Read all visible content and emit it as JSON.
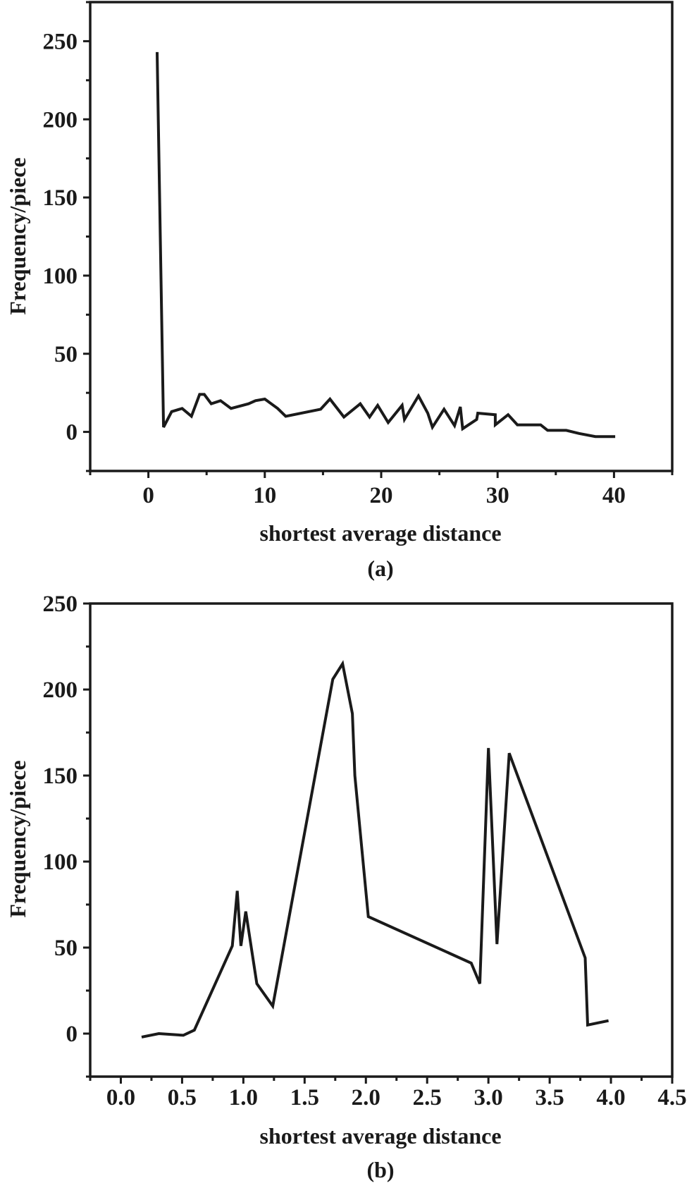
{
  "line_color": "#1a1a1a",
  "chart_data": [
    {
      "type": "line",
      "panel_label": "(a)",
      "xlabel": "shortest average distance",
      "ylabel": "Frequency/piece",
      "xlim": [
        -5,
        45
      ],
      "ylim": [
        -25,
        275
      ],
      "xticks": [
        0,
        10,
        20,
        30,
        40
      ],
      "xtick_labels": [
        "0",
        "10",
        "20",
        "30",
        "40"
      ],
      "xminor_step": 5,
      "yticks": [
        0,
        50,
        100,
        150,
        200,
        250
      ],
      "ytick_labels": [
        "0",
        "50",
        "100",
        "150",
        "200",
        "250"
      ],
      "yminor_step": 25,
      "grid": false,
      "x": [
        0.75,
        1.3,
        2.0,
        2.9,
        3.7,
        4.4,
        4.8,
        5.4,
        6.2,
        7.1,
        8.6,
        9.2,
        10.0,
        11.1,
        11.8,
        14.8,
        15.6,
        16.8,
        18.2,
        19.0,
        19.7,
        20.6,
        21.8,
        22.0,
        23.2,
        24.0,
        24.4,
        25.4,
        26.3,
        26.8,
        27.0,
        28.2,
        28.3,
        29.8,
        29.8,
        30.9,
        31.7,
        33.7,
        34.3,
        35.9,
        37.0,
        38.4,
        40.1
      ],
      "y": [
        243,
        3,
        13,
        15,
        10,
        24,
        24,
        18,
        20,
        15,
        18,
        20,
        21,
        15,
        10,
        14.5,
        21,
        9.5,
        18,
        9.5,
        17,
        6,
        17,
        8,
        23,
        12,
        3,
        14.5,
        4,
        16,
        2,
        8,
        12,
        11,
        4.5,
        11,
        4.5,
        4.5,
        1,
        1,
        -1,
        -3,
        -3
      ]
    },
    {
      "type": "line",
      "panel_label": "(b)",
      "xlabel": "shortest average distance",
      "ylabel": "Frequency/piece",
      "xlim": [
        -0.25,
        4.5
      ],
      "ylim": [
        -25,
        250
      ],
      "xticks": [
        0,
        0.5,
        1.0,
        1.5,
        2.0,
        2.5,
        3.0,
        3.5,
        4.0,
        4.5
      ],
      "xtick_labels": [
        "0.0",
        "0.5",
        "1.0",
        "1.5",
        "2.0",
        "2.5",
        "3.0",
        "3.5",
        "4.0",
        "4.5"
      ],
      "xminor_step": 0.25,
      "yticks": [
        0,
        50,
        100,
        150,
        200,
        250
      ],
      "ytick_labels": [
        "0",
        "50",
        "100",
        "150",
        "200",
        "250"
      ],
      "yminor_step": 25,
      "grid": false,
      "x": [
        0.17,
        0.31,
        0.51,
        0.6,
        0.91,
        0.95,
        0.98,
        1.02,
        1.11,
        1.24,
        1.73,
        1.81,
        1.89,
        1.91,
        2.02,
        2.86,
        2.93,
        3.0,
        3.07,
        3.17,
        3.79,
        3.81,
        3.98
      ],
      "y": [
        -2,
        0,
        -1,
        2,
        51,
        83,
        51,
        71,
        29,
        16,
        206,
        215,
        186,
        150,
        68,
        41,
        29,
        166,
        52,
        163,
        44,
        5,
        7.5
      ]
    }
  ]
}
